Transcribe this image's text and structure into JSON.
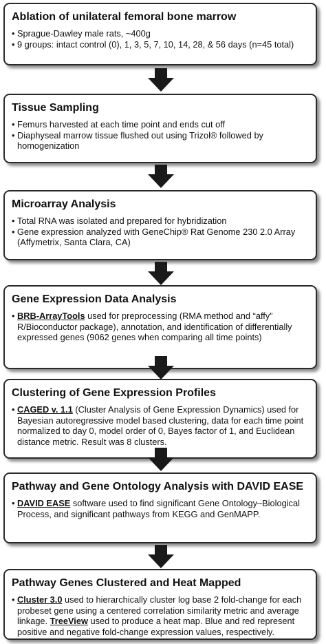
{
  "steps": [
    {
      "title": "Ablation of unilateral femoral bone marrow",
      "bullets": [
        {
          "tool": "",
          "text": "Sprague-Dawley male rats, ~400g"
        },
        {
          "tool": "",
          "text": "9 groups: intact control (0), 1, 3, 5, 7, 10, 14, 28, & 56 days (n=45 total)"
        }
      ]
    },
    {
      "title": "Tissue Sampling",
      "bullets": [
        {
          "tool": "",
          "text": "Femurs harvested at each time point and ends cut off"
        },
        {
          "tool": "",
          "text": "Diaphyseal marrow tissue  flushed out using Trizol® followed by homogenization"
        }
      ]
    },
    {
      "title": "Microarray Analysis",
      "bullets": [
        {
          "tool": "",
          "text": "Total RNA was isolated and prepared for hybridization"
        },
        {
          "tool": "",
          "text": "Gene expression analyzed with GeneChip® Rat Genome 230 2.0 Array (Affymetrix, Santa Clara, CA)"
        }
      ]
    },
    {
      "title": "Gene Expression Data Analysis",
      "bullets": [
        {
          "tool": "BRB-ArrayTools",
          "text": " used for preprocessing (RMA method and “affy” R/Bioconductor package), annotation, and identification of differentially expressed genes (9062 genes when comparing all time points)"
        }
      ]
    },
    {
      "title": "Clustering of Gene Expression Profiles",
      "bullets": [
        {
          "tool": "CAGED v. 1.1",
          "text": " (Cluster Analysis of Gene Expression Dynamics) used for Bayesian autoregressive model based clustering, data for each time point normalized to day 0, model order of 0, Bayes factor of 1, and Euclidean distance metric. Result was 8 clusters."
        }
      ]
    },
    {
      "title": "Pathway and Gene Ontology Analysis with DAVID EASE",
      "bullets": [
        {
          "tool": "DAVID EASE",
          "text": " software used to find significant Gene Ontology–Biological Process, and significant pathways from KEGG and GenMAPP."
        }
      ]
    },
    {
      "title": "Pathway Genes Clustered and Heat Mapped",
      "bullets": [
        {
          "tool": "Cluster 3.0",
          "text": " used to hierarchically cluster log base 2 fold-change for each probeset gene using a centered correlation similarity metric and average linkage. ",
          "tool2": "TreeView",
          "text2": " used to produce a heat map. Blue and red represent positive and negative fold-change expression values, respectively."
        }
      ]
    }
  ]
}
